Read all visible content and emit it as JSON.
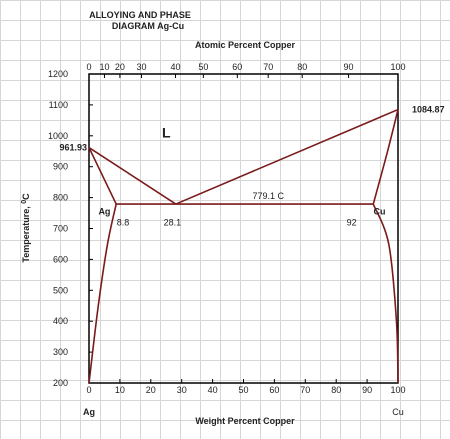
{
  "chart_data": {
    "type": "line",
    "title_line1": "ALLOYING AND PHASE",
    "title_line2": "DIAGRAM Ag-Cu",
    "top_axis_title": "Atomic Percent Copper",
    "xlabel": "Weight Percent Copper",
    "ylabel_main": "Temperature, ",
    "ylabel_sup": "0",
    "ylabel_unit": "C",
    "xlim": [
      0,
      100
    ],
    "ylim": [
      200,
      1200
    ],
    "x_ticks": [
      0,
      10,
      20,
      30,
      40,
      50,
      60,
      70,
      80,
      90,
      100
    ],
    "y_ticks": [
      200,
      300,
      400,
      500,
      600,
      700,
      800,
      900,
      1000,
      1100,
      1200
    ],
    "top_ticks": [
      {
        "label": "0",
        "x": 0
      },
      {
        "label": "10",
        "x": 5
      },
      {
        "label": "20",
        "x": 10
      },
      {
        "label": "30",
        "x": 17
      },
      {
        "label": "40",
        "x": 28
      },
      {
        "label": "50",
        "x": 37
      },
      {
        "label": "60",
        "x": 48
      },
      {
        "label": "70",
        "x": 58
      },
      {
        "label": "80",
        "x": 69
      },
      {
        "label": "90",
        "x": 84
      },
      {
        "label": "100",
        "x": 100
      }
    ],
    "series": [
      {
        "values": [
          [
            0,
            961.93
          ],
          [
            28.1,
            779.1
          ]
        ]
      },
      {
        "values": [
          [
            28.1,
            779.1
          ],
          [
            100,
            1084.87
          ]
        ]
      },
      {
        "values": [
          [
            0,
            961.93
          ],
          [
            8.8,
            779.1
          ]
        ]
      },
      {
        "values": [
          [
            8.8,
            779.1
          ],
          [
            92,
            779.1
          ]
        ]
      },
      {
        "values": [
          [
            92,
            779.1
          ],
          [
            96.5,
            945
          ],
          [
            100,
            1084.87
          ]
        ]
      },
      {
        "values": [
          [
            0,
            200
          ],
          [
            3,
            450
          ],
          [
            6,
            650
          ],
          [
            8.8,
            779.1
          ]
        ]
      },
      {
        "values": [
          [
            92,
            779.1
          ],
          [
            97,
            650
          ],
          [
            99.5,
            400
          ],
          [
            100,
            200
          ]
        ]
      }
    ],
    "annotations": [
      {
        "text": "961.93",
        "x": 0,
        "y": 961.93,
        "bold": true
      },
      {
        "text": "1084.87",
        "x": 100,
        "y": 1084.87,
        "bold": true
      },
      {
        "text": "L",
        "x": 25,
        "y": 995,
        "bold": true
      },
      {
        "text": "779.1 C",
        "x": 58,
        "y": 795,
        "bold": false
      },
      {
        "text": "Ag",
        "x": 5,
        "y": 745,
        "bold": true
      },
      {
        "text": "Cu",
        "x": 94,
        "y": 745,
        "bold": true
      },
      {
        "text": "8.8",
        "x": 11,
        "y": 710,
        "bold": false
      },
      {
        "text": "28.1",
        "x": 27,
        "y": 710,
        "bold": false
      },
      {
        "text": "92",
        "x": 85,
        "y": 710,
        "bold": false
      }
    ],
    "bottom_labels": {
      "left": "Ag",
      "right": "Cu"
    },
    "line_color": "#7a1a1a",
    "grid": true
  }
}
